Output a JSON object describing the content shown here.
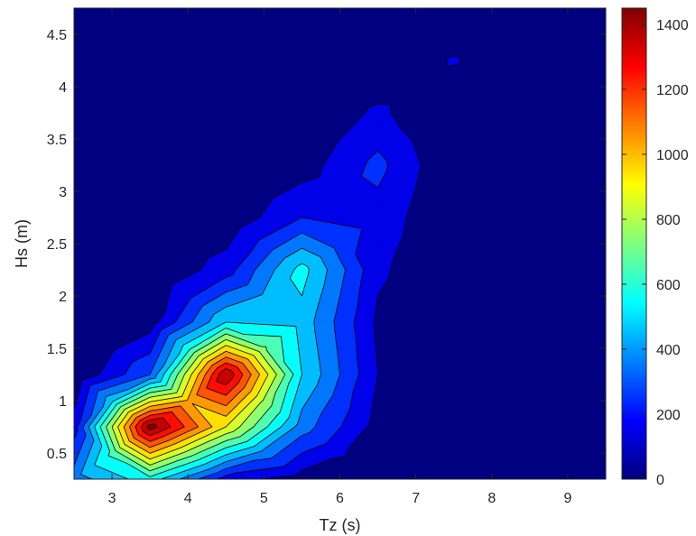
{
  "chart_data": {
    "type": "contour",
    "xlabel": "Tz (s)",
    "ylabel": "Hs (m)",
    "xlim": [
      2.5,
      9.5
    ],
    "ylim": [
      0.25,
      4.75
    ],
    "x_ticks": [
      3,
      4,
      5,
      6,
      7,
      8,
      9
    ],
    "y_ticks": [
      0.5,
      1,
      1.5,
      2,
      2.5,
      3,
      3.5,
      4,
      4.5
    ],
    "colormap": "jet",
    "colorbar": {
      "range": [
        0,
        1450
      ],
      "ticks": [
        0,
        200,
        400,
        600,
        800,
        1000,
        1200,
        1400
      ],
      "position": "right"
    },
    "contour_levels": [
      0,
      100,
      200,
      300,
      400,
      500,
      600,
      700,
      800,
      900,
      1000,
      1100,
      1200,
      1300,
      1400
    ],
    "x": [
      2.5,
      3.5,
      4.5,
      5.5,
      6.5,
      7.5,
      8.5,
      9.5
    ],
    "y": [
      0.25,
      0.75,
      1.25,
      1.75,
      2.25,
      2.75,
      3.25,
      3.75,
      4.25,
      4.75
    ],
    "z": [
      [
        350,
        560,
        150,
        50,
        0,
        0,
        0,
        0
      ],
      [
        150,
        1450,
        900,
        350,
        60,
        0,
        0,
        0
      ],
      [
        0,
        300,
        1400,
        500,
        100,
        0,
        0,
        0
      ],
      [
        0,
        50,
        500,
        460,
        80,
        0,
        0,
        0
      ],
      [
        0,
        0,
        150,
        540,
        120,
        0,
        0,
        0
      ],
      [
        0,
        0,
        20,
        200,
        160,
        0,
        0,
        0
      ],
      [
        0,
        0,
        0,
        50,
        230,
        0,
        0,
        0
      ],
      [
        0,
        0,
        0,
        0,
        120,
        0,
        0,
        0
      ],
      [
        0,
        0,
        0,
        0,
        0,
        110,
        0,
        0
      ],
      [
        0,
        0,
        0,
        0,
        0,
        0,
        0,
        0
      ]
    ],
    "grid": false,
    "legend": "none"
  }
}
